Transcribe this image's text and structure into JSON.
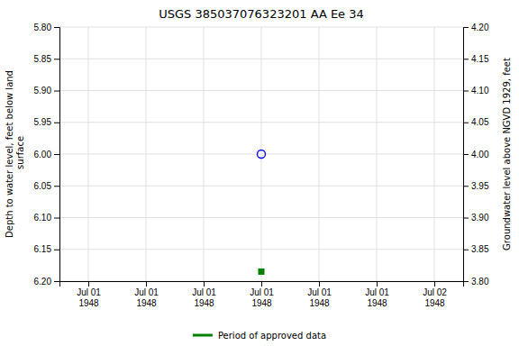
{
  "chart_data": {
    "type": "scatter",
    "title": "USGS 385037076323201 AA Ee  34",
    "ylabel": "Depth to water level, feet below land\n surface",
    "y2label": "Groundwater level above NGVD 1929, feet",
    "categories": [
      "Jul 01\n1948",
      "Jul 01\n1948",
      "Jul 01\n1948",
      "Jul 01\n1948",
      "Jul 01\n1948",
      "Jul 01\n1948",
      "Jul 02\n1948"
    ],
    "series": [
      {
        "color": "#0000ff",
        "marker": "circle-open",
        "values": [
          null,
          null,
          null,
          6.0,
          null,
          null,
          null
        ]
      },
      {
        "name": "Period of approved data",
        "color": "#008000",
        "marker": "square",
        "values": [
          null,
          null,
          null,
          6.185,
          null,
          null,
          null
        ]
      }
    ],
    "ylim": [
      6.2,
      5.8
    ],
    "yticks": [
      {
        "value": 5.8,
        "label": "5.80"
      },
      {
        "value": 5.85,
        "label": "5.85"
      },
      {
        "value": 5.9,
        "label": "5.90"
      },
      {
        "value": 5.95,
        "label": "5.95"
      },
      {
        "value": 6.0,
        "label": "6.00"
      },
      {
        "value": 6.05,
        "label": "6.05"
      },
      {
        "value": 6.1,
        "label": "6.10"
      },
      {
        "value": 6.15,
        "label": "6.15"
      },
      {
        "value": 6.2,
        "label": "6.20"
      }
    ],
    "y2lim": [
      3.8,
      4.2
    ],
    "y2ticks": [
      {
        "value": 4.2,
        "label": "4.20"
      },
      {
        "value": 4.15,
        "label": "4.15"
      },
      {
        "value": 4.1,
        "label": "4.10"
      },
      {
        "value": 4.05,
        "label": "4.05"
      },
      {
        "value": 4.0,
        "label": "4.00"
      },
      {
        "value": 3.95,
        "label": "3.95"
      },
      {
        "value": 3.9,
        "label": "3.90"
      },
      {
        "value": 3.85,
        "label": "3.85"
      },
      {
        "value": 3.8,
        "label": "3.80"
      }
    ],
    "grid": true,
    "legend": "bottom"
  }
}
